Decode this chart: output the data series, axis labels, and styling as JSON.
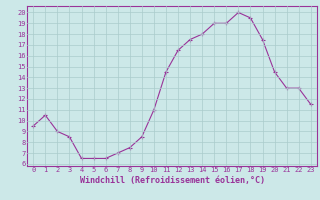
{
  "x": [
    0,
    1,
    2,
    3,
    4,
    5,
    6,
    7,
    8,
    9,
    10,
    11,
    12,
    13,
    14,
    15,
    16,
    17,
    18,
    19,
    20,
    21,
    22,
    23
  ],
  "y": [
    9.5,
    10.5,
    9.0,
    8.5,
    6.5,
    6.5,
    6.5,
    7.0,
    7.5,
    8.5,
    11.0,
    14.5,
    16.5,
    17.5,
    18.0,
    19.0,
    19.0,
    20.0,
    19.5,
    17.5,
    14.5,
    13.0,
    13.0,
    11.5
  ],
  "xlim": [
    -0.5,
    23.5
  ],
  "ylim": [
    5.8,
    20.6
  ],
  "yticks": [
    6,
    7,
    8,
    9,
    10,
    11,
    12,
    13,
    14,
    15,
    16,
    17,
    18,
    19,
    20
  ],
  "xticks": [
    0,
    1,
    2,
    3,
    4,
    5,
    6,
    7,
    8,
    9,
    10,
    11,
    12,
    13,
    14,
    15,
    16,
    17,
    18,
    19,
    20,
    21,
    22,
    23
  ],
  "xlabel": "Windchill (Refroidissement éolien,°C)",
  "line_color": "#993399",
  "marker": "+",
  "bg_color": "#cce8e8",
  "grid_color": "#aacccc",
  "tick_label_fontsize": 5.0,
  "xlabel_fontsize": 6.0,
  "title": ""
}
